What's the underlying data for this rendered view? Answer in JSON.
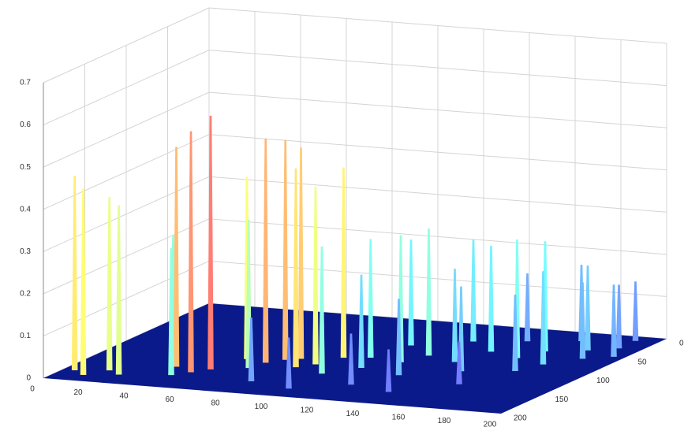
{
  "chart_data": {
    "type": "stem3",
    "points": {
      "x": [
        5,
        12,
        18,
        25,
        40,
        50,
        55,
        45,
        35,
        60,
        70,
        75,
        80,
        68,
        85,
        90,
        95,
        100,
        105,
        110,
        120,
        125,
        130,
        140,
        145,
        150,
        160,
        165,
        170,
        175,
        180,
        185,
        190,
        195,
        160,
        120,
        140,
        100,
        80,
        150,
        170,
        190,
        110,
        130
      ],
      "y": [
        176,
        185,
        170,
        178,
        150,
        160,
        150,
        170,
        140,
        120,
        125,
        115,
        110,
        140,
        130,
        120,
        100,
        140,
        95,
        120,
        100,
        80,
        130,
        90,
        60,
        110,
        70,
        50,
        100,
        80,
        40,
        60,
        30,
        50,
        140,
        160,
        170,
        180,
        170,
        30,
        20,
        10,
        60,
        40
      ],
      "z": [
        0.46,
        0.44,
        0.41,
        0.4,
        0.52,
        0.57,
        0.6,
        0.3,
        0.3,
        0.43,
        0.53,
        0.52,
        0.5,
        0.35,
        0.47,
        0.42,
        0.45,
        0.3,
        0.28,
        0.22,
        0.3,
        0.3,
        0.18,
        0.22,
        0.25,
        0.2,
        0.28,
        0.26,
        0.18,
        0.22,
        0.2,
        0.18,
        0.15,
        0.17,
        0.1,
        0.12,
        0.1,
        0.12,
        0.15,
        0.16,
        0.18,
        0.14,
        0.25,
        0.24
      ]
    },
    "xlim": [
      0,
      200
    ],
    "xticks": [
      0,
      20,
      40,
      60,
      80,
      100,
      120,
      140,
      160,
      180,
      200
    ],
    "ylim": [
      0,
      200
    ],
    "yticks": [
      0,
      50,
      100,
      150,
      200
    ],
    "zlim": [
      0,
      0.7
    ],
    "zticks": [
      0,
      0.1,
      0.2,
      0.3,
      0.4,
      0.5,
      0.6,
      0.7
    ],
    "grid": true,
    "floor_color": "#0a1a8a",
    "colormap": "jet"
  }
}
